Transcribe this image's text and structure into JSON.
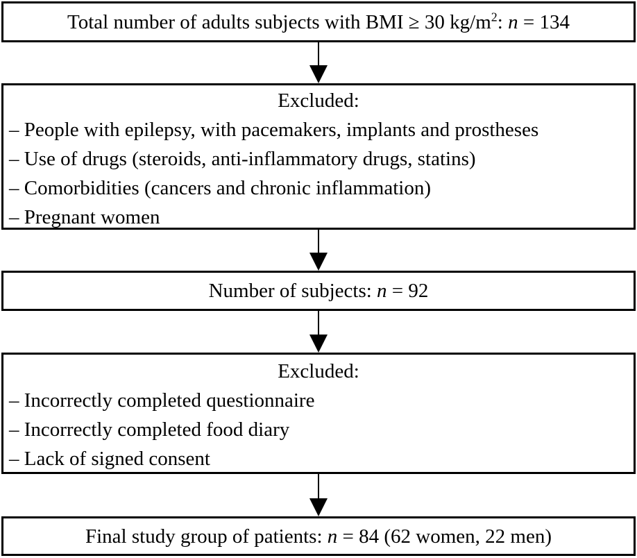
{
  "figure": {
    "type": "flowchart",
    "background": "#ffffff",
    "border_color": "#000000",
    "text_color": "#000000"
  },
  "boxes": [
    {
      "id": "total-subjects",
      "segments": {
        "before_sup": "Total number of adults subjects with BMI ≥ 30 kg/m",
        "sup": "2",
        "after_sup": ": ",
        "n": "n",
        "after_n": " = 134"
      }
    },
    {
      "id": "excluded-first",
      "title": "Excluded:",
      "items": [
        "– People with epilepsy, with pacemakers, implants and prostheses",
        "– Use of drugs (steroids, anti-inflammatory drugs, statins)",
        "– Comorbidities (cancers and chronic inflammation)",
        "– Pregnant women"
      ]
    },
    {
      "id": "subjects-count",
      "segments": {
        "before_n": "Number of subjects: ",
        "n": "n",
        "after_n": " = 92"
      }
    },
    {
      "id": "excluded-second",
      "title": "Excluded:",
      "items": [
        "– Incorrectly completed questionnaire",
        "– Incorrectly completed food diary",
        "– Lack of signed consent"
      ]
    },
    {
      "id": "final-group",
      "segments": {
        "before_n": "Final study group of patients: ",
        "n": "n",
        "after_n": " = 84 (62 women, 22 men)"
      }
    }
  ]
}
